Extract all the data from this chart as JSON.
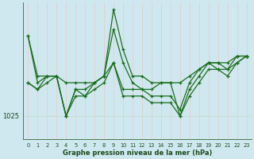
{
  "xlabel": "Graphe pression niveau de la mer (hPa)",
  "background_color": "#cfe8f0",
  "vgrid_color": "#e8c8c8",
  "hgrid_color": "#c8d8c8",
  "line_color": "#1a6e1a",
  "y_tick_label": "1025",
  "y_tick_value": 1025,
  "ylim_min": 1021.5,
  "ylim_max": 1042,
  "xlim_min": -0.5,
  "xlim_max": 23.5,
  "x_ticks": [
    0,
    1,
    2,
    3,
    4,
    5,
    6,
    7,
    8,
    9,
    10,
    11,
    12,
    13,
    14,
    15,
    16,
    17,
    18,
    19,
    20,
    21,
    22,
    23
  ],
  "series": [
    [
      1037,
      1031,
      1031,
      1031,
      1030,
      1030,
      1030,
      1030,
      1031,
      1041,
      1035,
      1031,
      1031,
      1030,
      1030,
      1030,
      1030,
      1031,
      1032,
      1033,
      1033,
      1033,
      1034,
      1034
    ],
    [
      1037,
      1030,
      1031,
      1031,
      1025,
      1029,
      1029,
      1030,
      1031,
      1038,
      1033,
      1030,
      1029,
      1028,
      1028,
      1028,
      1026,
      1030,
      1032,
      1033,
      1032,
      1032,
      1033,
      1034
    ],
    [
      1030,
      1029,
      1030,
      1031,
      1025,
      1028,
      1028,
      1029,
      1030,
      1033,
      1028,
      1028,
      1028,
      1027,
      1027,
      1027,
      1025,
      1028,
      1030,
      1032,
      1032,
      1031,
      1033,
      1034
    ],
    [
      1030,
      1029,
      1031,
      1031,
      1025,
      1029,
      1028,
      1030,
      1031,
      1033,
      1029,
      1029,
      1029,
      1029,
      1030,
      1030,
      1025,
      1029,
      1031,
      1033,
      1033,
      1032,
      1034,
      1034
    ]
  ],
  "xlabel_fontsize": 6,
  "ytick_fontsize": 6,
  "xtick_fontsize": 4.8,
  "linewidth": 0.9,
  "markersize": 3.0
}
